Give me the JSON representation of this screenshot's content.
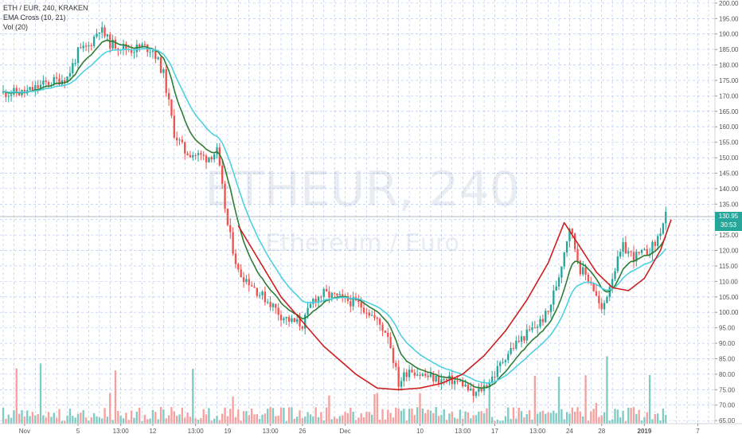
{
  "legend": {
    "symbol": "ETH / EUR, 240, KRAKEN",
    "ema": "EMA Cross (10, 21)",
    "vol": "Vol (20)"
  },
  "watermark": {
    "main": "ETHEUR, 240",
    "sub": "Ethereum / Euro"
  },
  "price_tag": {
    "price": "130.95",
    "countdown": "30:53"
  },
  "colors": {
    "up": "#26a69a",
    "down": "#ef5350",
    "up_volume": "#80cbc4",
    "down_volume": "#f4a19f",
    "ema_fast": "#2e7d32",
    "ema_slow": "#4dd0e1",
    "curve": "#cc1f1f",
    "grid": "#6b8bd6",
    "price_tag": "#26a69a"
  },
  "chart_data": {
    "type": "candlestick",
    "y_ticks": [
      "200.00",
      "195.00",
      "190.00",
      "185.00",
      "180.00",
      "175.00",
      "170.00",
      "165.00",
      "160.00",
      "155.00",
      "150.00",
      "145.00",
      "140.00",
      "135.00",
      "130.00",
      "125.00",
      "120.00",
      "115.00",
      "110.00",
      "105.00",
      "100.00",
      "95.00",
      "90.00",
      "85.00",
      "80.00",
      "75.00",
      "70.00",
      "65.00"
    ],
    "ylim": [
      64,
      201
    ],
    "x_ticks": [
      "Nov",
      "5",
      "13:00",
      "12",
      "13:00",
      "19",
      "13:00",
      "26",
      "Dec",
      "10",
      "13:00",
      "17",
      "13:00",
      "24",
      "28",
      "2019",
      "7"
    ],
    "x_tick_pos": [
      0.0,
      5.0,
      9.0,
      12.0,
      16.0,
      19.0,
      23.0,
      26.0,
      30.0,
      37.0,
      41.0,
      44.0,
      48.0,
      51.0,
      54.0,
      58.0,
      63.0
    ],
    "x_range": [
      -2.3,
      64.6
    ],
    "price_anchors": [
      [
        0,
        171
      ],
      [
        2,
        174
      ],
      [
        4,
        176
      ],
      [
        5,
        184
      ],
      [
        6,
        186
      ],
      [
        7,
        192
      ],
      [
        8,
        187
      ],
      [
        9,
        186
      ],
      [
        10,
        185
      ],
      [
        11,
        186
      ],
      [
        12,
        185
      ],
      [
        13,
        177
      ],
      [
        14,
        158
      ],
      [
        15,
        152
      ],
      [
        16,
        151
      ],
      [
        17,
        150
      ],
      [
        18,
        152
      ],
      [
        19,
        128
      ],
      [
        20,
        113
      ],
      [
        21,
        110
      ],
      [
        22,
        106
      ],
      [
        23,
        103
      ],
      [
        24,
        99
      ],
      [
        25,
        97
      ],
      [
        26,
        96
      ],
      [
        27,
        104
      ],
      [
        28,
        106
      ],
      [
        29,
        105
      ],
      [
        30,
        104
      ],
      [
        31,
        103
      ],
      [
        32,
        101
      ],
      [
        33,
        97
      ],
      [
        34,
        93
      ],
      [
        35,
        77
      ],
      [
        36,
        82
      ],
      [
        37,
        80
      ],
      [
        38,
        79
      ],
      [
        39,
        78
      ],
      [
        40,
        78
      ],
      [
        41,
        77
      ],
      [
        42,
        73
      ],
      [
        43,
        76
      ],
      [
        44,
        80
      ],
      [
        45,
        86
      ],
      [
        46,
        90
      ],
      [
        47,
        93
      ],
      [
        48,
        96
      ],
      [
        49,
        100
      ],
      [
        50,
        112
      ],
      [
        51,
        128
      ],
      [
        52,
        114
      ],
      [
        53,
        110
      ],
      [
        54,
        100
      ],
      [
        55,
        112
      ],
      [
        56,
        121
      ],
      [
        57,
        118
      ],
      [
        58,
        119
      ],
      [
        59,
        122
      ],
      [
        60,
        131
      ]
    ],
    "curve_points": [
      [
        20,
        128
      ],
      [
        24,
        105
      ],
      [
        28,
        89
      ],
      [
        31,
        80
      ],
      [
        33,
        75.5
      ],
      [
        35,
        75
      ],
      [
        37,
        75.5
      ],
      [
        39,
        77
      ],
      [
        41,
        80
      ],
      [
        43,
        86
      ],
      [
        45,
        94
      ],
      [
        47,
        104
      ],
      [
        49,
        116
      ],
      [
        50.5,
        129
      ],
      [
        52,
        121
      ],
      [
        53.5,
        113
      ],
      [
        55,
        108
      ],
      [
        56.5,
        107
      ],
      [
        58,
        111
      ],
      [
        59.5,
        120
      ],
      [
        60.5,
        130
      ]
    ],
    "price_line": 130.95
  }
}
